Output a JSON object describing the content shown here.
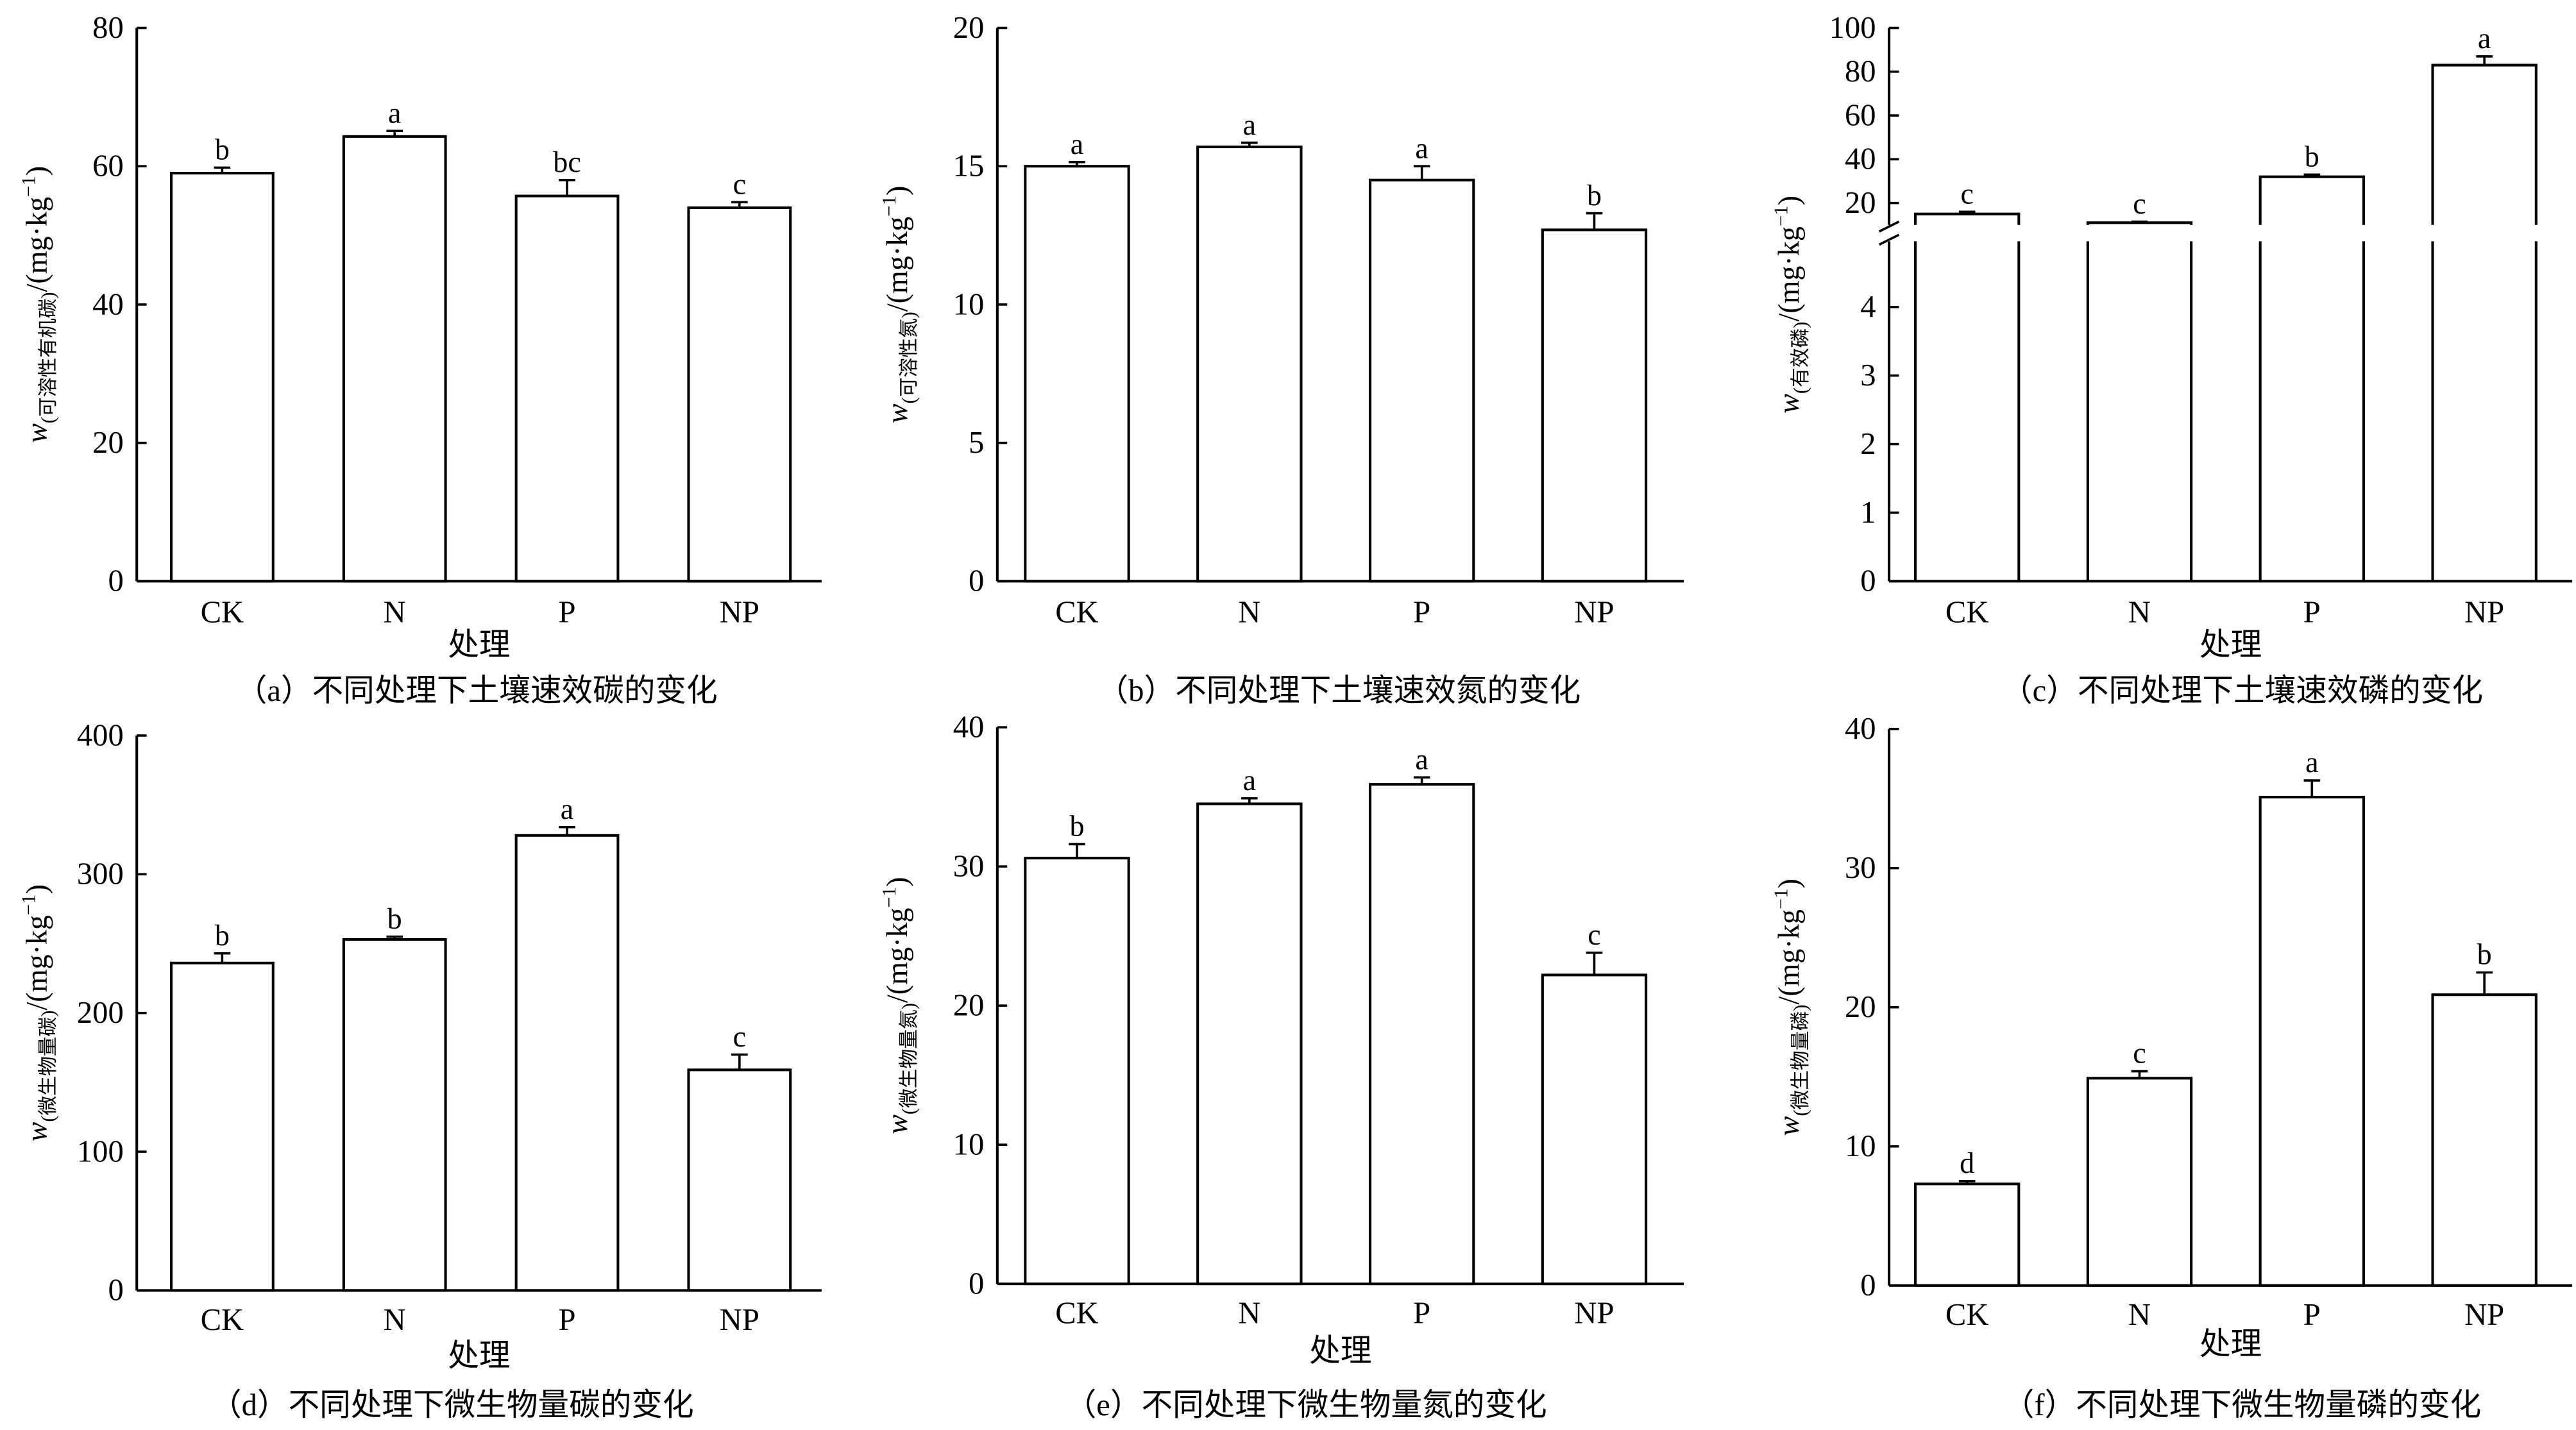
{
  "chart_data": [
    {
      "type": "bar",
      "id": "a",
      "title": "（a）不同处理下土壤速效碳的变化",
      "xlabel": "处理",
      "ylabel": {
        "var": "w",
        "sub": "(可溶性有机碳)",
        "unit": "/(mg·kg",
        "exp": "−1",
        ")": ")"
      },
      "categories": [
        "CK",
        "N",
        "P",
        "NP"
      ],
      "values": [
        59,
        64.3,
        55.7,
        54
      ],
      "errors": [
        0.8,
        0.8,
        2.3,
        0.8
      ],
      "letters": [
        "b",
        "a",
        "bc",
        "c"
      ],
      "ylim": [
        0,
        80
      ],
      "yticks": [
        0,
        20,
        40,
        60,
        80
      ]
    },
    {
      "type": "bar",
      "id": "b",
      "title": "（b）不同处理下土壤速效氮的变化",
      "xlabel": "",
      "ylabel": {
        "var": "w",
        "sub": "(可溶性氮)",
        "unit": "/(mg·kg",
        "exp": "−1",
        ")": ")"
      },
      "categories": [
        "CK",
        "N",
        "P",
        "NP"
      ],
      "values": [
        15,
        15.7,
        14.5,
        12.7
      ],
      "errors": [
        0.15,
        0.15,
        0.5,
        0.6
      ],
      "letters": [
        "a",
        "a",
        "a",
        "b"
      ],
      "ylim": [
        0,
        20
      ],
      "yticks": [
        0,
        5,
        10,
        15,
        20
      ]
    },
    {
      "type": "bar",
      "id": "c",
      "title": "（c）不同处理下土壤速效磷的变化",
      "xlabel": "处理",
      "ylabel": {
        "var": "w",
        "sub": "(有效磷)",
        "unit": "/(mg·kg",
        "exp": "−1",
        ")": ")"
      },
      "categories": [
        "CK",
        "N",
        "P",
        "NP"
      ],
      "values": [
        15,
        11,
        32,
        83
      ],
      "errors": [
        1,
        0.5,
        1,
        4
      ],
      "letters": [
        "c",
        "c",
        "b",
        "a"
      ],
      "broken_axis": true,
      "ylim_lower": [
        0,
        5
      ],
      "ylim_upper": [
        10,
        100
      ],
      "yticks_lower": [
        0,
        1,
        2,
        3,
        4
      ],
      "yticks_upper": [
        20,
        40,
        60,
        80,
        100
      ]
    },
    {
      "type": "bar",
      "id": "d",
      "title": "（d）不同处理下微生物量碳的变化",
      "xlabel": "处理",
      "ylabel": {
        "var": "w",
        "sub": "(微生物量碳)",
        "unit": "/(mg·kg",
        "exp": "−1",
        ")": ")"
      },
      "categories": [
        "CK",
        "N",
        "P",
        "NP"
      ],
      "values": [
        236,
        253,
        328,
        159
      ],
      "errors": [
        7,
        2,
        6,
        11
      ],
      "letters": [
        "b",
        "b",
        "a",
        "c"
      ],
      "ylim": [
        0,
        400
      ],
      "yticks": [
        0,
        100,
        200,
        300,
        400
      ]
    },
    {
      "type": "bar",
      "id": "e",
      "title": "（e）不同处理下微生物量氮的变化",
      "xlabel": "处理",
      "ylabel": {
        "var": "w",
        "sub": "(微生物量氮)",
        "unit": "/(mg·kg",
        "exp": "−1",
        ")": ")"
      },
      "categories": [
        "CK",
        "N",
        "P",
        "NP"
      ],
      "values": [
        30.6,
        34.5,
        35.9,
        22.2
      ],
      "errors": [
        1,
        0.4,
        0.5,
        1.6
      ],
      "letters": [
        "b",
        "a",
        "a",
        "c"
      ],
      "ylim": [
        0,
        40
      ],
      "yticks": [
        0,
        10,
        20,
        30,
        40
      ]
    },
    {
      "type": "bar",
      "id": "f",
      "title": "（f）不同处理下微生物量磷的变化",
      "xlabel": "处理",
      "ylabel": {
        "var": "w",
        "sub": "(微生物量磷)",
        "unit": "/(mg·kg",
        "exp": "−1",
        ")": ")"
      },
      "categories": [
        "CK",
        "N",
        "P",
        "NP"
      ],
      "values": [
        7.3,
        14.9,
        35.1,
        20.9
      ],
      "errors": [
        0.2,
        0.5,
        1.2,
        1.6
      ],
      "letters": [
        "d",
        "c",
        "a",
        "b"
      ],
      "ylim": [
        0,
        40
      ],
      "yticks": [
        0,
        10,
        20,
        30,
        40
      ]
    }
  ]
}
